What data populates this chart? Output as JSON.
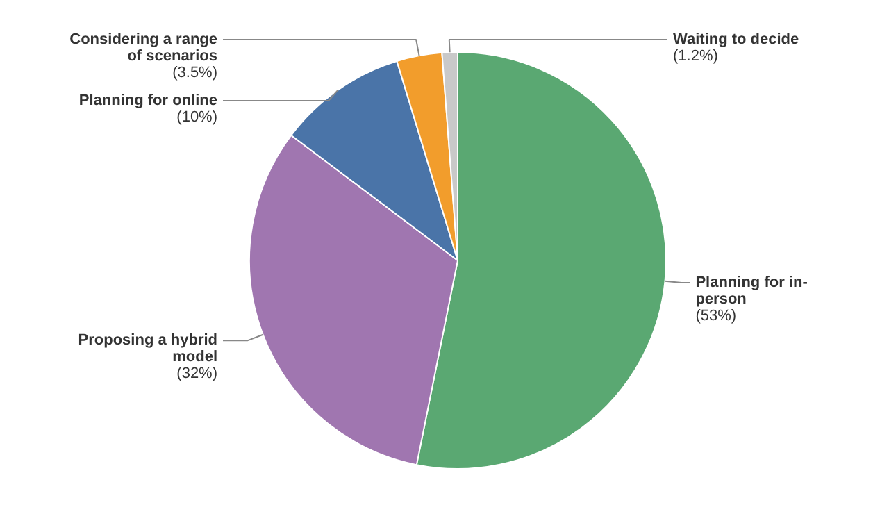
{
  "chart_data": {
    "type": "pie",
    "categories": [
      "Planning for in-person",
      "Proposing a hybrid model",
      "Planning for online",
      "Considering a range of scenarios",
      "Waiting to decide"
    ],
    "values": [
      53,
      32,
      10,
      3.5,
      1.2
    ],
    "value_labels": [
      "(53%)",
      "(32%)",
      "(10%)",
      "(3.5%)",
      "(1.2%)"
    ],
    "colors": [
      "#5aa872",
      "#a076b0",
      "#4a74a8",
      "#f29d2c",
      "#c9c9c9"
    ]
  }
}
